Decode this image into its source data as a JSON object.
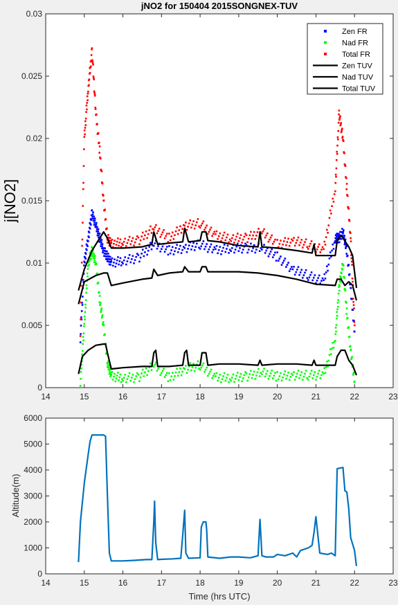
{
  "chart_data": [
    {
      "type": "scatter",
      "title": "jNO2 for 150404 2015SONGNEX-TUV",
      "xlabel": "",
      "ylabel": "j[NO2]",
      "xlim": [
        14,
        23
      ],
      "ylim": [
        0,
        0.03
      ],
      "x_ticks": [
        "14",
        "15",
        "16",
        "17",
        "18",
        "19",
        "20",
        "21",
        "22",
        "23"
      ],
      "y_ticks": [
        "0",
        "0.005",
        "0.01",
        "0.015",
        "0.02",
        "0.025",
        "0.03"
      ],
      "legend_position": "top-right",
      "grid": false,
      "series": [
        {
          "name": "Zen FR",
          "marker": "point",
          "color": "#0000ff",
          "x": [
            14.9,
            15.0,
            15.1,
            15.2,
            15.3,
            15.4,
            15.5,
            15.6,
            15.7,
            16.0,
            16.4,
            16.8,
            17.2,
            17.6,
            18.0,
            18.4,
            18.8,
            19.2,
            19.6,
            20.0,
            20.4,
            20.8,
            21.2,
            21.5,
            21.6,
            21.7,
            21.8,
            21.9,
            22.0
          ],
          "y": [
            0.004,
            0.01,
            0.012,
            0.014,
            0.013,
            0.012,
            0.011,
            0.0105,
            0.01,
            0.0102,
            0.0104,
            0.0115,
            0.011,
            0.0112,
            0.0115,
            0.011,
            0.0112,
            0.0112,
            0.0112,
            0.0105,
            0.0095,
            0.009,
            0.0085,
            0.012,
            0.012,
            0.0125,
            0.011,
            0.008,
            0.0045
          ]
        },
        {
          "name": "Nad FR",
          "marker": "point",
          "color": "#00ff00",
          "x": [
            14.9,
            15.0,
            15.1,
            15.2,
            15.3,
            15.4,
            15.5,
            15.6,
            15.7,
            16.0,
            16.4,
            16.8,
            17.2,
            17.6,
            18.0,
            18.4,
            18.8,
            19.2,
            19.6,
            20.0,
            20.4,
            20.8,
            21.2,
            21.5,
            21.6,
            21.7,
            21.8,
            21.9,
            22.0
          ],
          "y": [
            0.0005,
            0.005,
            0.01,
            0.011,
            0.01,
            0.007,
            0.005,
            0.002,
            0.0009,
            0.0008,
            0.0008,
            0.0018,
            0.0008,
            0.0015,
            0.0018,
            0.0008,
            0.0008,
            0.0009,
            0.0012,
            0.0009,
            0.001,
            0.001,
            0.001,
            0.004,
            0.008,
            0.01,
            0.006,
            0.003,
            0.0005
          ]
        },
        {
          "name": "Total FR",
          "marker": "point",
          "color": "#ff0000",
          "x": [
            14.9,
            15.0,
            15.1,
            15.2,
            15.3,
            15.4,
            15.5,
            15.6,
            15.7,
            16.0,
            16.4,
            16.8,
            17.2,
            17.6,
            18.0,
            18.4,
            18.8,
            19.2,
            19.6,
            20.0,
            20.4,
            20.8,
            21.2,
            21.5,
            21.6,
            21.7,
            21.8,
            21.9,
            22.0
          ],
          "y": [
            0.0045,
            0.02,
            0.024,
            0.027,
            0.022,
            0.019,
            0.015,
            0.012,
            0.0115,
            0.0117,
            0.0118,
            0.0128,
            0.012,
            0.013,
            0.0132,
            0.0122,
            0.012,
            0.012,
            0.0125,
            0.0115,
            0.0118,
            0.0115,
            0.011,
            0.016,
            0.022,
            0.02,
            0.016,
            0.012,
            0.005
          ]
        },
        {
          "name": "Zen TUV",
          "marker": "line",
          "color": "#000000",
          "x": [
            14.85,
            15.0,
            15.2,
            15.4,
            15.5,
            15.6,
            15.7,
            16.0,
            16.5,
            16.75,
            16.8,
            16.9,
            17.2,
            17.55,
            17.6,
            17.7,
            18.0,
            18.05,
            18.15,
            18.2,
            18.5,
            19.0,
            19.5,
            19.55,
            19.6,
            20.0,
            20.5,
            20.9,
            20.95,
            21.0,
            21.5,
            21.55,
            21.65,
            21.7,
            21.85,
            21.95,
            22.05
          ],
          "y": [
            0.0078,
            0.0095,
            0.011,
            0.012,
            0.0125,
            0.012,
            0.0112,
            0.0112,
            0.0113,
            0.0115,
            0.0125,
            0.0115,
            0.0116,
            0.0117,
            0.0128,
            0.0117,
            0.0118,
            0.0125,
            0.0125,
            0.0118,
            0.0117,
            0.0114,
            0.0113,
            0.0125,
            0.0113,
            0.0112,
            0.011,
            0.0108,
            0.0115,
            0.0106,
            0.0106,
            0.0118,
            0.0122,
            0.012,
            0.0113,
            0.0106,
            0.008
          ]
        },
        {
          "name": "Nad TUV",
          "marker": "line",
          "color": "#000000",
          "x": [
            14.85,
            15.0,
            15.3,
            15.5,
            15.6,
            15.7,
            16.0,
            16.5,
            16.75,
            16.8,
            16.9,
            17.2,
            17.55,
            17.6,
            17.7,
            18.0,
            18.05,
            18.15,
            18.2,
            18.5,
            19.0,
            19.5,
            20.0,
            20.5,
            21.0,
            21.5,
            21.55,
            21.65,
            21.75,
            21.85,
            21.95,
            22.05
          ],
          "y": [
            0.0067,
            0.0085,
            0.009,
            0.0092,
            0.0092,
            0.0082,
            0.0084,
            0.0087,
            0.0088,
            0.0095,
            0.009,
            0.0092,
            0.0093,
            0.0097,
            0.0093,
            0.0093,
            0.0097,
            0.0097,
            0.0093,
            0.0093,
            0.0093,
            0.0092,
            0.009,
            0.0087,
            0.0083,
            0.0082,
            0.0087,
            0.0087,
            0.0082,
            0.0085,
            0.0082,
            0.007
          ]
        },
        {
          "name": "Total TUV",
          "marker": "line",
          "color": "#000000",
          "x": [
            14.85,
            14.95,
            15.1,
            15.3,
            15.5,
            15.55,
            15.6,
            15.7,
            16.0,
            16.5,
            16.75,
            16.8,
            16.85,
            16.9,
            17.2,
            17.55,
            17.6,
            17.65,
            17.7,
            18.0,
            18.05,
            18.15,
            18.2,
            18.5,
            19.0,
            19.5,
            19.55,
            19.6,
            20.0,
            20.5,
            20.9,
            20.95,
            21.0,
            21.5,
            21.55,
            21.65,
            21.75,
            21.85,
            21.95,
            22.05
          ],
          "y": [
            0.0011,
            0.0025,
            0.003,
            0.0034,
            0.0035,
            0.0035,
            0.0028,
            0.0015,
            0.0016,
            0.0017,
            0.0017,
            0.0028,
            0.003,
            0.0017,
            0.0017,
            0.0018,
            0.0028,
            0.003,
            0.0018,
            0.0018,
            0.0028,
            0.0028,
            0.0018,
            0.0019,
            0.0019,
            0.0018,
            0.0022,
            0.0018,
            0.0019,
            0.0019,
            0.0018,
            0.0022,
            0.0018,
            0.0018,
            0.0025,
            0.003,
            0.003,
            0.0022,
            0.0018,
            0.001
          ]
        }
      ]
    },
    {
      "type": "line",
      "title": "",
      "xlabel": "Time (hrs UTC)",
      "ylabel": "Altitude(m)",
      "xlim": [
        14,
        23
      ],
      "ylim": [
        0,
        6000
      ],
      "x_ticks": [
        "14",
        "15",
        "16",
        "17",
        "18",
        "19",
        "20",
        "21",
        "22",
        "23"
      ],
      "y_ticks": [
        "0",
        "1000",
        "2000",
        "3000",
        "4000",
        "5000",
        "6000"
      ],
      "grid": false,
      "series": [
        {
          "color": "#0072bd",
          "x": [
            14.85,
            14.9,
            15.0,
            15.1,
            15.15,
            15.2,
            15.3,
            15.4,
            15.5,
            15.55,
            15.6,
            15.65,
            15.7,
            15.8,
            16.0,
            16.3,
            16.6,
            16.75,
            16.8,
            16.82,
            16.85,
            16.9,
            17.0,
            17.3,
            17.5,
            17.55,
            17.6,
            17.63,
            17.7,
            18.0,
            18.03,
            18.08,
            18.15,
            18.17,
            18.2,
            18.5,
            18.8,
            19.0,
            19.3,
            19.5,
            19.55,
            19.6,
            19.7,
            19.9,
            20.0,
            20.2,
            20.4,
            20.5,
            20.6,
            20.8,
            20.9,
            20.95,
            21.0,
            21.1,
            21.3,
            21.4,
            21.5,
            21.55,
            21.7,
            21.75,
            21.8,
            21.85,
            21.9,
            22.0,
            22.05
          ],
          "y": [
            450,
            2000,
            3500,
            4600,
            5100,
            5350,
            5350,
            5350,
            5350,
            5300,
            3000,
            800,
            500,
            500,
            500,
            520,
            550,
            550,
            2000,
            2800,
            1200,
            550,
            560,
            580,
            600,
            1500,
            2450,
            800,
            600,
            620,
            1800,
            2000,
            2000,
            1700,
            650,
            600,
            650,
            650,
            620,
            700,
            2100,
            700,
            650,
            650,
            750,
            700,
            800,
            650,
            900,
            1000,
            1100,
            1600,
            2200,
            800,
            750,
            800,
            700,
            4050,
            4100,
            3200,
            3150,
            2500,
            1400,
            900,
            300
          ]
        }
      ]
    }
  ]
}
